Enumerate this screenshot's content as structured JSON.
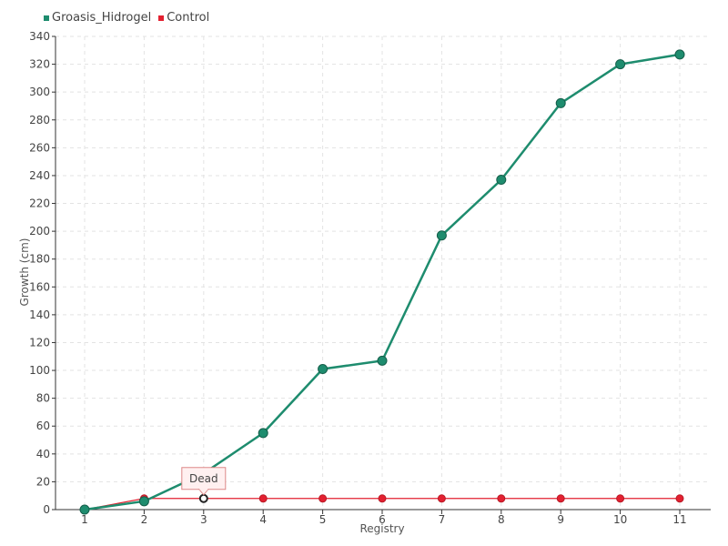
{
  "chart_data": {
    "type": "line",
    "title": "",
    "xlabel": "Registry",
    "ylabel": "Growth (cm)",
    "x": [
      1,
      2,
      3,
      4,
      5,
      6,
      7,
      8,
      9,
      10,
      11
    ],
    "categories": [
      "1",
      "2",
      "3",
      "4",
      "5",
      "6",
      "7",
      "8",
      "9",
      "10",
      "11"
    ],
    "ylim": [
      0,
      340
    ],
    "yticks": [
      0,
      20,
      40,
      60,
      80,
      100,
      120,
      140,
      160,
      180,
      200,
      220,
      240,
      260,
      280,
      300,
      320,
      340
    ],
    "grid": true,
    "legend_position": "top-left",
    "series": [
      {
        "name": "Groasis_Hidrogel",
        "color": "#1e8c6e",
        "values": [
          0,
          6,
          26,
          55,
          101,
          107,
          197,
          237,
          292,
          320,
          327
        ]
      },
      {
        "name": "Control",
        "color": "#e32030",
        "values": [
          0,
          8,
          8,
          8,
          8,
          8,
          8,
          8,
          8,
          8,
          8
        ]
      }
    ],
    "annotations": [
      {
        "series": "Control",
        "x": 3,
        "y": 8,
        "text": "Dead"
      }
    ]
  }
}
